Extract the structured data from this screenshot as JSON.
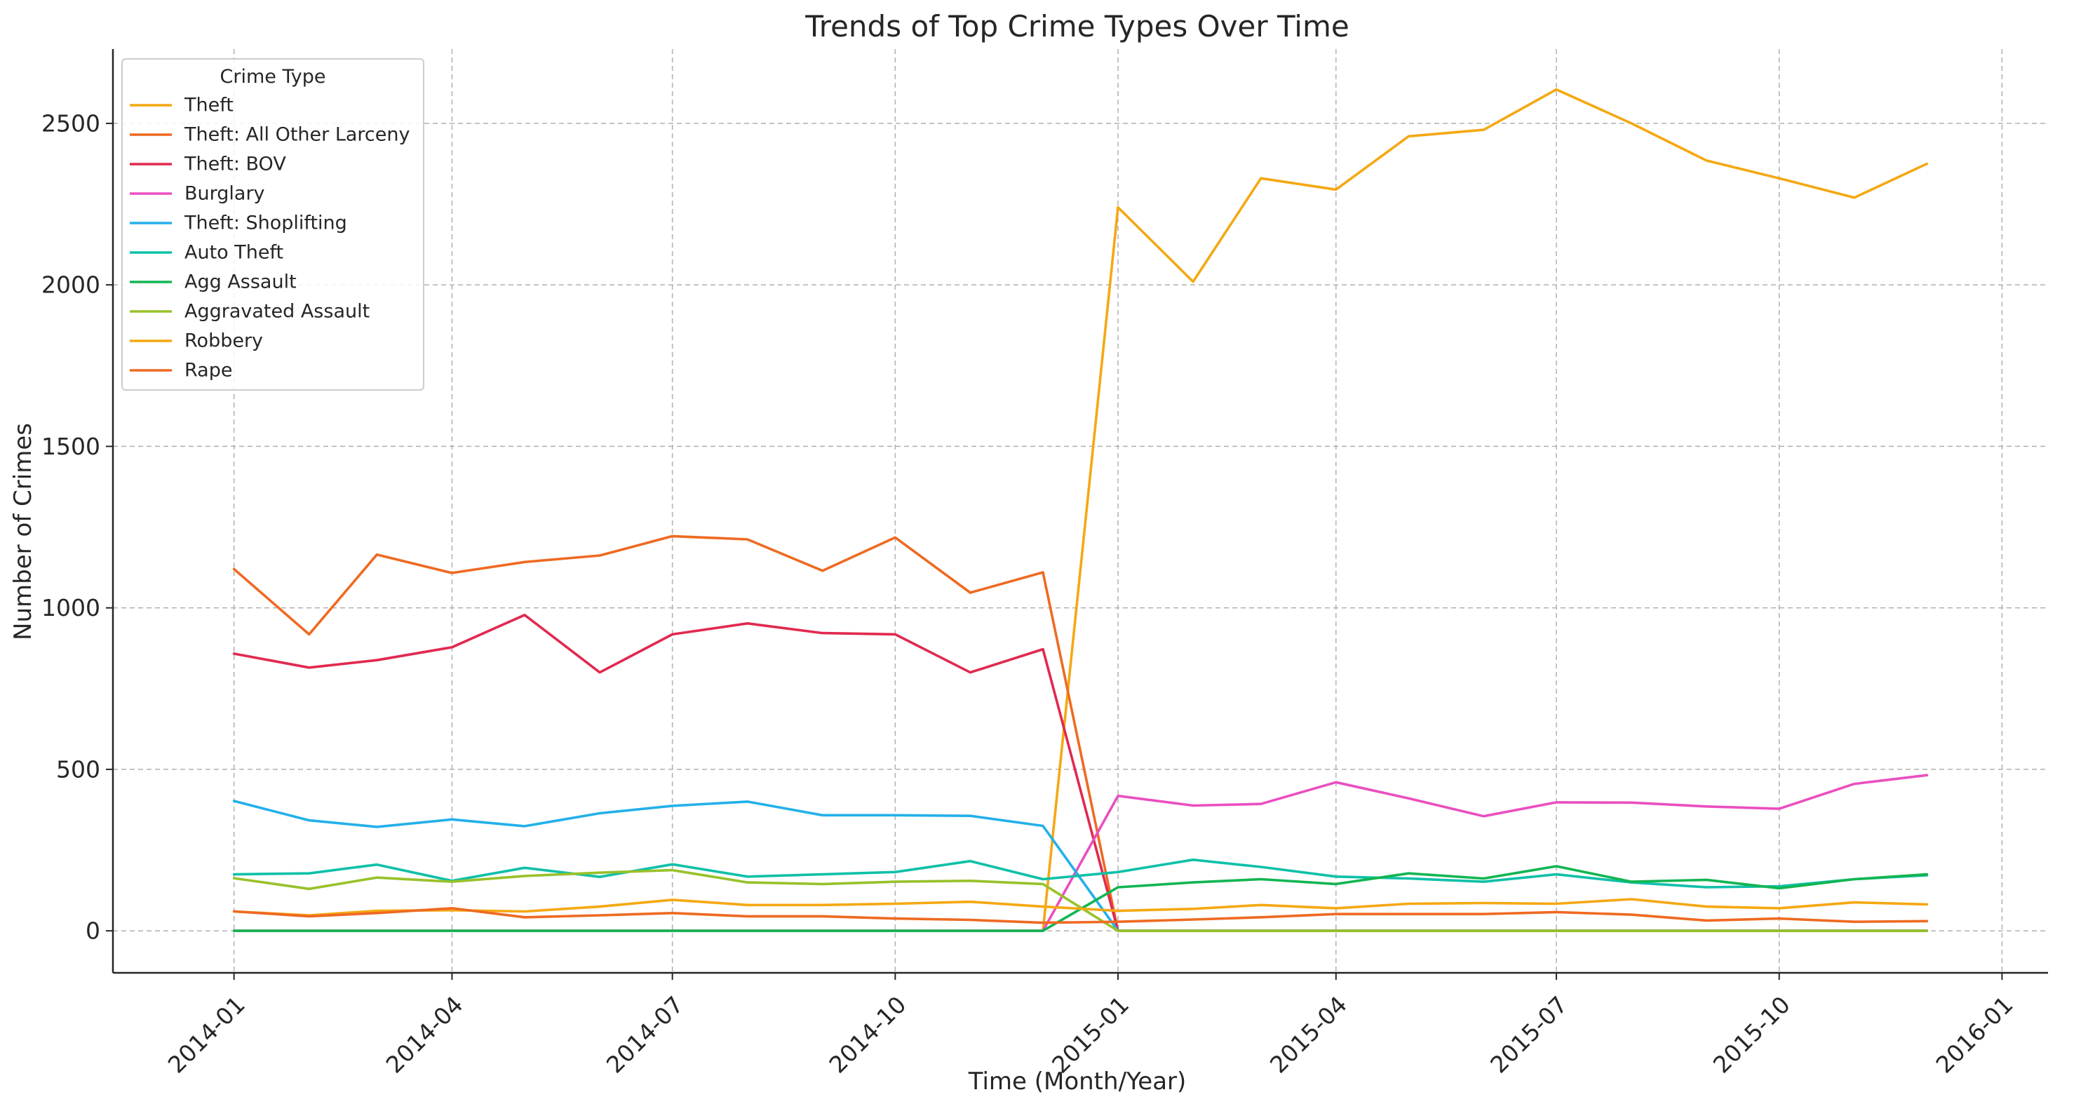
{
  "chart_data": {
    "type": "line",
    "title": "Trends of Top Crime Types Over Time",
    "xlabel": "Time (Month/Year)",
    "ylabel": "Number of Crimes",
    "x": [
      "2014-01",
      "2014-02",
      "2014-03",
      "2014-04",
      "2014-05",
      "2014-06",
      "2014-07",
      "2014-08",
      "2014-09",
      "2014-10",
      "2014-11",
      "2014-12",
      "2015-01",
      "2015-02",
      "2015-03",
      "2015-04",
      "2015-05",
      "2015-06",
      "2015-07",
      "2015-08",
      "2015-09",
      "2015-10",
      "2015-11",
      "2015-12"
    ],
    "xlim": [
      "2013-11-12",
      "2016-01-20"
    ],
    "ylim": [
      -130,
      2730
    ],
    "x_ticks": [
      "2014-01",
      "2014-04",
      "2014-07",
      "2014-10",
      "2015-01",
      "2015-04",
      "2015-07",
      "2015-10",
      "2016-01"
    ],
    "y_ticks": [
      0,
      500,
      1000,
      1500,
      2000,
      2500
    ],
    "grid": true,
    "legend": {
      "title": "Crime Type",
      "position": "upper-left"
    },
    "series": [
      {
        "name": "Theft",
        "color": "#f4a812",
        "values": [
          0,
          0,
          0,
          0,
          0,
          0,
          0,
          0,
          0,
          0,
          0,
          0,
          2240,
          2010,
          2330,
          2295,
          2460,
          2480,
          2605,
          2500,
          2385,
          2330,
          2270,
          2375
        ]
      },
      {
        "name": "Theft: All Other Larceny",
        "color": "#ee6a22",
        "values": [
          1120,
          918,
          1165,
          1108,
          1142,
          1162,
          1222,
          1212,
          1115,
          1218,
          1047,
          1110,
          0,
          0,
          0,
          0,
          0,
          0,
          0,
          0,
          0,
          0,
          0,
          0
        ]
      },
      {
        "name": "Theft: BOV",
        "color": "#e1294f",
        "values": [
          858,
          815,
          838,
          878,
          978,
          800,
          918,
          952,
          922,
          918,
          800,
          872,
          0,
          0,
          0,
          0,
          0,
          0,
          0,
          0,
          0,
          0,
          0,
          0
        ]
      },
      {
        "name": "Burglary",
        "color": "#ea4fc0",
        "values": [
          0,
          0,
          0,
          0,
          0,
          0,
          0,
          0,
          0,
          0,
          0,
          0,
          418,
          388,
          393,
          460,
          410,
          355,
          398,
          397,
          385,
          378,
          455,
          482
        ]
      },
      {
        "name": "Theft: Shoplifting",
        "color": "#23b0ea",
        "values": [
          402,
          342,
          322,
          345,
          324,
          364,
          387,
          400,
          358,
          358,
          356,
          325,
          0,
          0,
          0,
          0,
          0,
          0,
          0,
          0,
          0,
          0,
          0,
          0
        ]
      },
      {
        "name": "Auto Theft",
        "color": "#0fc0a8",
        "values": [
          175,
          178,
          205,
          155,
          195,
          167,
          206,
          168,
          175,
          182,
          216,
          160,
          182,
          220,
          198,
          168,
          162,
          152,
          175,
          150,
          135,
          138,
          160,
          172
        ]
      },
      {
        "name": "Agg Assault",
        "color": "#12b552",
        "values": [
          0,
          0,
          0,
          0,
          0,
          0,
          0,
          0,
          0,
          0,
          0,
          0,
          135,
          150,
          160,
          145,
          178,
          162,
          200,
          152,
          158,
          132,
          160,
          175
        ]
      },
      {
        "name": "Aggravated Assault",
        "color": "#98c12a",
        "values": [
          163,
          130,
          165,
          152,
          170,
          180,
          188,
          150,
          145,
          152,
          155,
          145,
          0,
          0,
          0,
          0,
          0,
          0,
          0,
          0,
          0,
          0,
          0,
          0
        ]
      },
      {
        "name": "Robbery",
        "color": "#f4a812",
        "values": [
          60,
          48,
          62,
          64,
          60,
          75,
          96,
          80,
          80,
          84,
          90,
          75,
          62,
          68,
          80,
          70,
          84,
          86,
          84,
          98,
          75,
          70,
          88,
          82
        ]
      },
      {
        "name": "Rape",
        "color": "#ee6a22",
        "values": [
          60,
          45,
          55,
          70,
          42,
          48,
          55,
          45,
          45,
          38,
          34,
          25,
          28,
          35,
          42,
          52,
          52,
          52,
          58,
          50,
          32,
          38,
          28,
          30
        ]
      }
    ]
  }
}
